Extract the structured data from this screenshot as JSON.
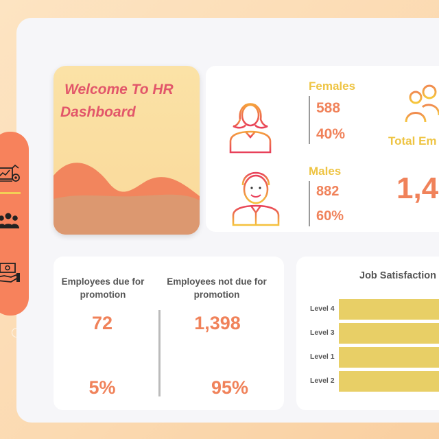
{
  "welcome": {
    "line1": "Welcome To HR",
    "line2": "Dashboard"
  },
  "sidebar": {
    "items": [
      {
        "icon": "dashboard-analytics-icon",
        "active": true
      },
      {
        "icon": "people-group-icon",
        "active": false
      },
      {
        "icon": "money-hand-icon",
        "active": false
      }
    ]
  },
  "gender": {
    "females": {
      "label": "Females",
      "count": "588",
      "percent": "40%"
    },
    "males": {
      "label": "Males",
      "count": "882",
      "percent": "60%"
    }
  },
  "total": {
    "label": "Total Em",
    "value": "1,4"
  },
  "promotion": {
    "due": {
      "heading": "Employees due for promotion",
      "count": "72",
      "percent": "5%"
    },
    "not_due": {
      "heading": "Employees not due for promotion",
      "count": "1,398",
      "percent": "95%"
    }
  },
  "job_satisfaction": {
    "title": "Job Satisfaction"
  },
  "chart_data": {
    "type": "bar",
    "title": "Job Satisfaction",
    "categories": [
      "Level 4",
      "Level 3",
      "Level 1",
      "Level 2"
    ],
    "orientation": "horizontal"
  },
  "colors": {
    "accent_orange": "#f0825a",
    "accent_yellow": "#eec443",
    "sidebar": "#f7825c",
    "bar": "#e8cf66"
  }
}
